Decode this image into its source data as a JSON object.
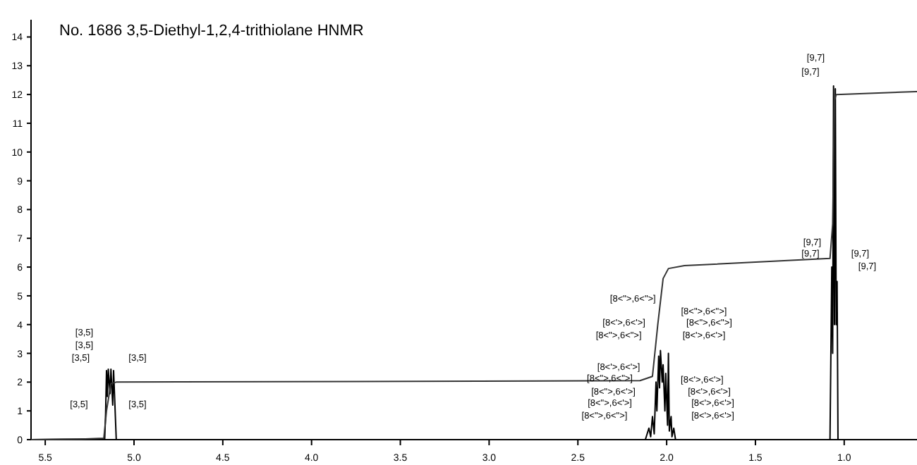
{
  "chart_data": {
    "type": "line",
    "title": "No. 1686 3,5-Diethyl-1,2,4-trithiolane HNMR",
    "xlim": [
      5.58,
      0.59
    ],
    "ylim": [
      0,
      14.6
    ],
    "xticks": [
      5.5,
      {
        "value": 5,
        "label": "5.0"
      },
      4.5,
      {
        "value": 4,
        "label": "4.0"
      },
      3.5,
      {
        "value": 3,
        "label": "3.0"
      },
      2.5,
      {
        "value": 2,
        "label": "2.0"
      },
      1.5,
      {
        "value": 1,
        "label": "1.0"
      }
    ],
    "yticks": [
      0,
      1,
      2,
      3,
      4,
      5,
      6,
      7,
      8,
      9,
      10,
      11,
      12,
      13,
      14
    ],
    "grid": false,
    "marker": "none",
    "line_style": "solid",
    "series": [
      {
        "color": "#000000",
        "x": [
          5.58,
          5.3,
          5.165,
          5.16,
          5.155,
          5.15,
          5.145,
          5.135,
          5.13,
          5.12,
          5.115,
          5.105,
          5.1,
          2.12,
          2.1,
          2.09,
          2.08,
          2.07,
          2.06,
          2.055,
          2.045,
          2.04,
          2.035,
          2.025,
          2.02,
          2.01,
          2.005,
          1.995,
          1.99,
          1.985,
          1.975,
          1.97,
          1.96,
          1.95,
          1.08,
          1.07,
          1.065,
          1.06,
          1.055,
          1.05,
          1.045,
          1.04,
          1.035,
          0.59
        ],
        "values": [
          0,
          0.02,
          0.03,
          0.9,
          2.4,
          1.5,
          2.45,
          1.6,
          2.45,
          1.2,
          2.4,
          0.8,
          0,
          0,
          0.4,
          0.1,
          0.8,
          0.2,
          2.0,
          1.0,
          2.9,
          1.8,
          3.1,
          2.0,
          2.6,
          1.0,
          2.3,
          0.5,
          3.0,
          0.3,
          0.8,
          0.1,
          0.4,
          0,
          0,
          6.0,
          3,
          12.3,
          4,
          12.2,
          4,
          5.5,
          0,
          0
        ]
      },
      {
        "color": "#333333",
        "x": [
          5.58,
          5.3,
          5.17,
          5.155,
          5.13,
          5.1,
          2.15,
          2.08,
          2.05,
          2.02,
          1.99,
          1.9,
          1.08,
          1.065,
          1.055,
          1.045,
          0.59
        ],
        "values": [
          0,
          0.02,
          0.05,
          1.0,
          1.95,
          2.0,
          2.05,
          2.2,
          4.0,
          5.6,
          5.95,
          6.05,
          6.3,
          7.5,
          11.8,
          12.0,
          12.1
        ]
      }
    ],
    "annotations": [
      "[3,5]",
      "[3,5]",
      "[3,5]",
      "[3,5]",
      "[3,5]",
      "[3,5]",
      "[8<\">,6<\">]",
      "[8<'>,6<'>]",
      "[8<\">,6<\">]",
      "[8<\">,6<\">]",
      "[8<\">,6<\">]",
      "[8<'>,6<'>]",
      "[8<'>,6<'>]",
      "[8<\">,6<\">]",
      "[8<\">,6<'>]",
      "[8<\">,6<'>]",
      "[8<\">,6<\">]",
      "[8<'>,6<'>]",
      "[8<'>,6<'>]",
      "[8<'>,6<'>]",
      "[8<'>,6<'>]",
      "[9,7]",
      "[9,7]",
      "[9,7]",
      "[9,7]",
      "[9,7]",
      "[9,7]"
    ]
  }
}
